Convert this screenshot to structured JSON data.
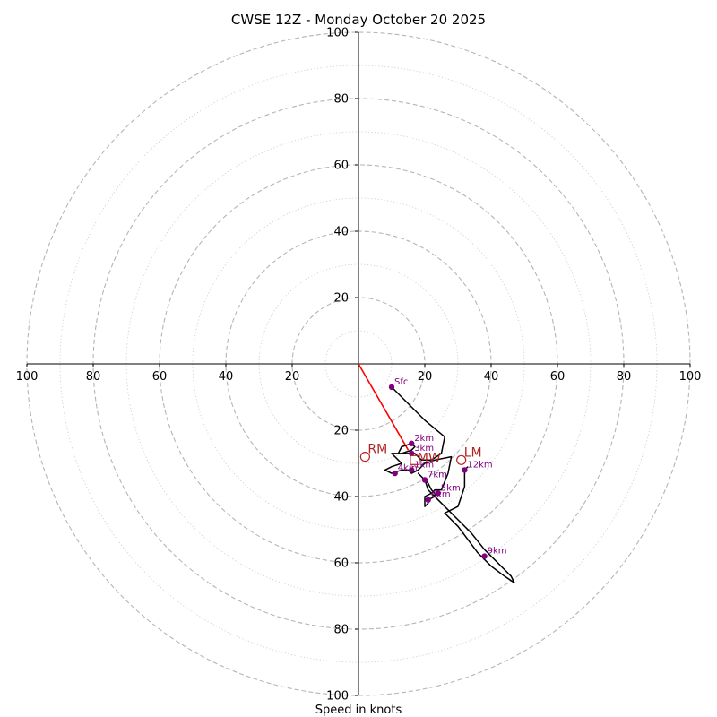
{
  "chart_data": {
    "type": "hodograph",
    "title": "CWSE 12Z - Monday October 20 2025",
    "xlabel": "Speed in knots",
    "max_speed": 100,
    "ring_step": 10,
    "tick_values": [
      20,
      40,
      60,
      80,
      100
    ],
    "tick_labels": [
      "20",
      "40",
      "60",
      "80",
      "100"
    ],
    "colors": {
      "hodo_line": "#000000",
      "height_marker": "#800080",
      "storm_marker": "#b22222",
      "shear_vector": "#ff0000",
      "grid": "#bbbbbb"
    },
    "hodograph_uv": [
      [
        10,
        -7
      ],
      [
        16,
        -13
      ],
      [
        20,
        -17
      ],
      [
        26,
        -22
      ],
      [
        25,
        -27
      ],
      [
        22,
        -29
      ],
      [
        19,
        -29
      ],
      [
        17,
        -27
      ],
      [
        14,
        -27
      ],
      [
        12,
        -27
      ],
      [
        13,
        -25
      ],
      [
        16,
        -24
      ],
      [
        17,
        -25
      ],
      [
        16,
        -26
      ],
      [
        13,
        -27
      ],
      [
        10,
        -27
      ],
      [
        12,
        -29
      ],
      [
        13,
        -30
      ],
      [
        10,
        -31
      ],
      [
        8,
        -32
      ],
      [
        10,
        -33
      ],
      [
        13,
        -32
      ],
      [
        15,
        -32
      ],
      [
        16,
        -33
      ],
      [
        18,
        -32
      ],
      [
        20,
        -30
      ],
      [
        23,
        -29
      ],
      [
        28,
        -28
      ],
      [
        27,
        -33
      ],
      [
        25,
        -38
      ],
      [
        23,
        -38
      ],
      [
        22,
        -39
      ],
      [
        20,
        -40
      ],
      [
        20,
        -41
      ],
      [
        20,
        -43
      ],
      [
        21,
        -42
      ],
      [
        21,
        -41
      ],
      [
        23,
        -40
      ],
      [
        23,
        -39
      ],
      [
        22,
        -38
      ],
      [
        21,
        -36
      ],
      [
        20,
        -35
      ],
      [
        18,
        -33
      ],
      [
        20,
        -35
      ],
      [
        21,
        -38
      ],
      [
        24,
        -41
      ],
      [
        27,
        -44
      ],
      [
        30,
        -47
      ],
      [
        34,
        -51
      ],
      [
        38,
        -56
      ],
      [
        42,
        -60
      ],
      [
        46,
        -64
      ],
      [
        47,
        -66
      ],
      [
        44,
        -64
      ],
      [
        40,
        -61
      ],
      [
        36,
        -57
      ],
      [
        33,
        -53
      ],
      [
        30,
        -49
      ],
      [
        26,
        -45
      ],
      [
        30,
        -43
      ],
      [
        32,
        -37
      ],
      [
        32,
        -32
      ],
      [
        33,
        -31
      ]
    ],
    "height_points": [
      {
        "label": "Sfc",
        "u": 10,
        "v": -7
      },
      {
        "label": "2km",
        "u": 16,
        "v": -24
      },
      {
        "label": "3km",
        "u": 16,
        "v": -27
      },
      {
        "label": "4km",
        "u": 11,
        "v": -33
      },
      {
        "label": "1km",
        "u": 16,
        "v": -32
      },
      {
        "label": "7km",
        "u": 20,
        "v": -35
      },
      {
        "label": "5km",
        "u": 24,
        "v": -39
      },
      {
        "label": "6km",
        "u": 21,
        "v": -41
      },
      {
        "label": "12km",
        "u": 32,
        "v": -32
      },
      {
        "label": "9km",
        "u": 38,
        "v": -58
      }
    ],
    "storm_motion": [
      {
        "label": "RM",
        "u": 2,
        "v": -28
      },
      {
        "label": "LM",
        "u": 31,
        "v": -29
      },
      {
        "label": "MW",
        "u": 17,
        "v": -29
      }
    ],
    "shear_vector": {
      "u0": 0,
      "v0": 0,
      "u1": 15,
      "v1": -26
    }
  }
}
